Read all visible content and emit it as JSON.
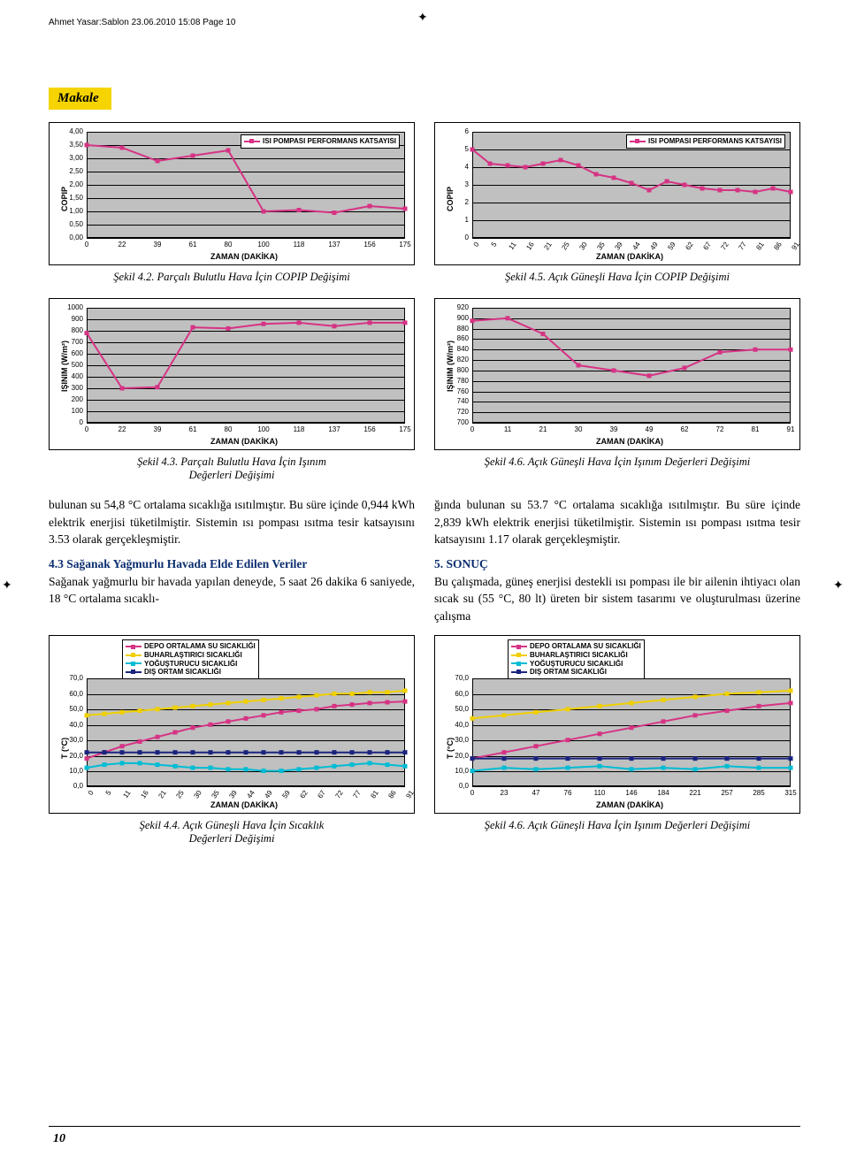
{
  "header": "Ahmet Yasar:Sablon  23.06.2010  15:08  Page 10",
  "makale_label": "Makale",
  "page_number": "10",
  "captions": {
    "c42": "Şekil 4.2. Parçalı Bulutlu Hava İçin COPIP Değişimi",
    "c45": "Şekil 4.5. Açık Güneşli Hava İçin COPIP Değişimi",
    "c43a": "Şekil 4.3. Parçalı Bulutlu Hava İçin Işınım",
    "c43b": "Değerleri Değişimi",
    "c46a": "Şekil 4.6. Açık Güneşli Hava İçin Işınım Değerleri Değişimi",
    "c44a": "Şekil 4.4. Açık Güneşli Hava İçin Sıcaklık",
    "c44b": "Değerleri Değişimi",
    "c46b": "Şekil 4.6. Açık Güneşli Hava İçin Işınım Değerleri Değişimi"
  },
  "text": {
    "p1": "bulunan su 54,8 °C ortalama sıcaklığa ısıtılmıştır. Bu süre içinde 0,944 kWh elektrik enerjisi tüketilmiştir. Sistemin ısı pompası ısıtma tesir katsayısını 3.53 olarak gerçekleşmiştir.",
    "h43": "4.3 Sağanak Yağmurlu Havada Elde Edilen Veriler",
    "p2": "Sağanak yağmurlu bir havada yapılan deneyde, 5 saat 26 dakika 6 saniyede, 18 °C ortalama sıcaklı-",
    "p3": "ğında bulunan su 53.7 °C ortalama sıcaklığa ısıtılmıştır. Bu süre içinde 2,839 kWh elektrik enerjisi tüketilmiştir. Sistemin ısı pompası ısıtma tesir katsayısını 1.17 olarak gerçekleşmiştir.",
    "h5": "5. SONUÇ",
    "p4": "Bu çalışmada, güneş enerjisi destekli ısı pompası ile bir ailenin ihtiyacı olan sıcak su (55 °C, 80 lt) üreten bir sistem tasarımı ve oluşturulması üzerine çalışma"
  },
  "colors": {
    "magenta": "#d63384",
    "yellow": "#f0d000",
    "cyan": "#00bcd4",
    "navy": "#1a237e",
    "plot_bg": "#c0c0c0",
    "heading": "#0b2e6f"
  },
  "charts": {
    "ch42": {
      "type": "line",
      "series_color": "#d63384",
      "legend": "ISI POMPASI PERFORMANS KATSAYISI",
      "ylabel": "COPIP",
      "xlabel": "ZAMAN (DAKİKA)",
      "ylim": [
        0,
        4.0
      ],
      "yticks": [
        "0,00",
        "0,50",
        "1,00",
        "1,50",
        "2,00",
        "2,50",
        "3,00",
        "3,50",
        "4,00"
      ],
      "xticks": [
        "0",
        "22",
        "39",
        "61",
        "80",
        "100",
        "118",
        "137",
        "156",
        "175"
      ],
      "values": [
        3.5,
        3.4,
        2.9,
        3.1,
        3.3,
        1.0,
        1.05,
        0.95,
        1.2,
        1.1
      ]
    },
    "ch45": {
      "type": "line",
      "series_color": "#d63384",
      "legend": "ISI POMPASI PERFORMANS KATSAYISI",
      "ylabel": "COPIP",
      "xlabel": "ZAMAN (DAKİKA)",
      "ylim": [
        0,
        6
      ],
      "yticks": [
        "0",
        "1",
        "2",
        "3",
        "4",
        "5",
        "6"
      ],
      "xticks": [
        "0",
        "5",
        "11",
        "16",
        "21",
        "25",
        "30",
        "35",
        "39",
        "44",
        "49",
        "59",
        "62",
        "67",
        "72",
        "77",
        "81",
        "86",
        "91"
      ],
      "values": [
        5.0,
        4.2,
        4.1,
        4.0,
        4.2,
        4.4,
        4.1,
        3.6,
        3.4,
        3.1,
        2.7,
        3.2,
        3.0,
        2.8,
        2.7,
        2.7,
        2.6,
        2.8,
        2.6
      ]
    },
    "ch43": {
      "type": "line",
      "series_color": "#d63384",
      "ylabel": "IŞINIM (W/m²)",
      "xlabel": "ZAMAN (DAKİKA)",
      "ylim": [
        0,
        1000
      ],
      "yticks": [
        "0",
        "100",
        "200",
        "300",
        "400",
        "500",
        "600",
        "700",
        "800",
        "900",
        "1000"
      ],
      "xticks": [
        "0",
        "22",
        "39",
        "61",
        "80",
        "100",
        "118",
        "137",
        "156",
        "175"
      ],
      "values": [
        780,
        300,
        310,
        830,
        820,
        860,
        870,
        840,
        870,
        870
      ]
    },
    "ch46": {
      "type": "line",
      "series_color": "#d63384",
      "ylabel": "IŞINIM (W/m²)",
      "xlabel": "ZAMAN (DAKİKA)",
      "ylim": [
        700,
        920
      ],
      "yticks": [
        "700",
        "720",
        "740",
        "760",
        "780",
        "800",
        "820",
        "840",
        "860",
        "880",
        "900",
        "920"
      ],
      "xticks": [
        "0",
        "11",
        "21",
        "30",
        "39",
        "49",
        "62",
        "72",
        "81",
        "91"
      ],
      "values": [
        895,
        900,
        870,
        810,
        800,
        790,
        805,
        835,
        840,
        840
      ]
    },
    "ch44": {
      "type": "multiline",
      "ylabel": "T (°C)",
      "xlabel": "ZAMAN (DAKİKA)",
      "ylim": [
        0,
        70
      ],
      "yticks": [
        "0,0",
        "10,0",
        "20,0",
        "30,0",
        "40,0",
        "50,0",
        "60,0",
        "70,0"
      ],
      "xticks": [
        "0",
        "5",
        "11",
        "16",
        "21",
        "25",
        "30",
        "35",
        "39",
        "44",
        "49",
        "59",
        "62",
        "67",
        "72",
        "77",
        "81",
        "86",
        "91"
      ],
      "legend_items": [
        {
          "label": "DEPO ORTALAMA SU SICAKLIĞI",
          "color": "#d63384"
        },
        {
          "label": "BUHARLAŞTIRICI SICAKLIĞI",
          "color": "#f0d000"
        },
        {
          "label": "YOĞUŞTURUCU SICAKLIĞI",
          "color": "#00bcd4"
        },
        {
          "label": "DIŞ ORTAM SICAKLIĞI",
          "color": "#1a237e"
        }
      ],
      "series": {
        "depo": [
          18,
          22,
          26,
          29,
          32,
          35,
          38,
          40,
          42,
          44,
          46,
          48,
          49,
          50,
          52,
          53,
          54,
          54.5,
          55
        ],
        "buhar": [
          46,
          47,
          48,
          49,
          50,
          51,
          52,
          53,
          54,
          55,
          56,
          57,
          58,
          59,
          60,
          60,
          61,
          61,
          62
        ],
        "yogus": [
          12,
          14,
          15,
          15,
          14,
          13,
          12,
          12,
          11,
          11,
          10,
          10,
          11,
          12,
          13,
          14,
          15,
          14,
          13
        ],
        "dis": [
          22,
          22,
          22,
          22,
          22,
          22,
          22,
          22,
          22,
          22,
          22,
          22,
          22,
          22,
          22,
          22,
          22,
          22,
          22
        ]
      }
    },
    "ch46b": {
      "type": "multiline",
      "ylabel": "T (°C)",
      "xlabel": "ZAMAN (DAKİKA)",
      "ylim": [
        0,
        70
      ],
      "yticks": [
        "0,0",
        "10,0",
        "20,0",
        "30,0",
        "40,0",
        "50,0",
        "60,0",
        "70,0"
      ],
      "xticks": [
        "0",
        "23",
        "47",
        "76",
        "110",
        "146",
        "184",
        "221",
        "257",
        "285",
        "315"
      ],
      "legend_items": [
        {
          "label": "DEPO ORTALAMA SU SICAKLIĞI",
          "color": "#d63384"
        },
        {
          "label": "BUHARLAŞTIRICI SICAKLIĞI",
          "color": "#f0d000"
        },
        {
          "label": "YOĞUŞTURUCU SICAKLIĞI",
          "color": "#00bcd4"
        },
        {
          "label": "DIŞ ORTAM SICAKLIĞI",
          "color": "#1a237e"
        }
      ],
      "series": {
        "depo": [
          18,
          22,
          26,
          30,
          34,
          38,
          42,
          46,
          49,
          52,
          54
        ],
        "buhar": [
          44,
          46,
          48,
          50,
          52,
          54,
          56,
          58,
          60,
          61,
          62
        ],
        "yogus": [
          10,
          12,
          11,
          12,
          13,
          11,
          12,
          11,
          13,
          12,
          12
        ],
        "dis": [
          18,
          18,
          18,
          18,
          18,
          18,
          18,
          18,
          18,
          18,
          18
        ]
      }
    }
  }
}
